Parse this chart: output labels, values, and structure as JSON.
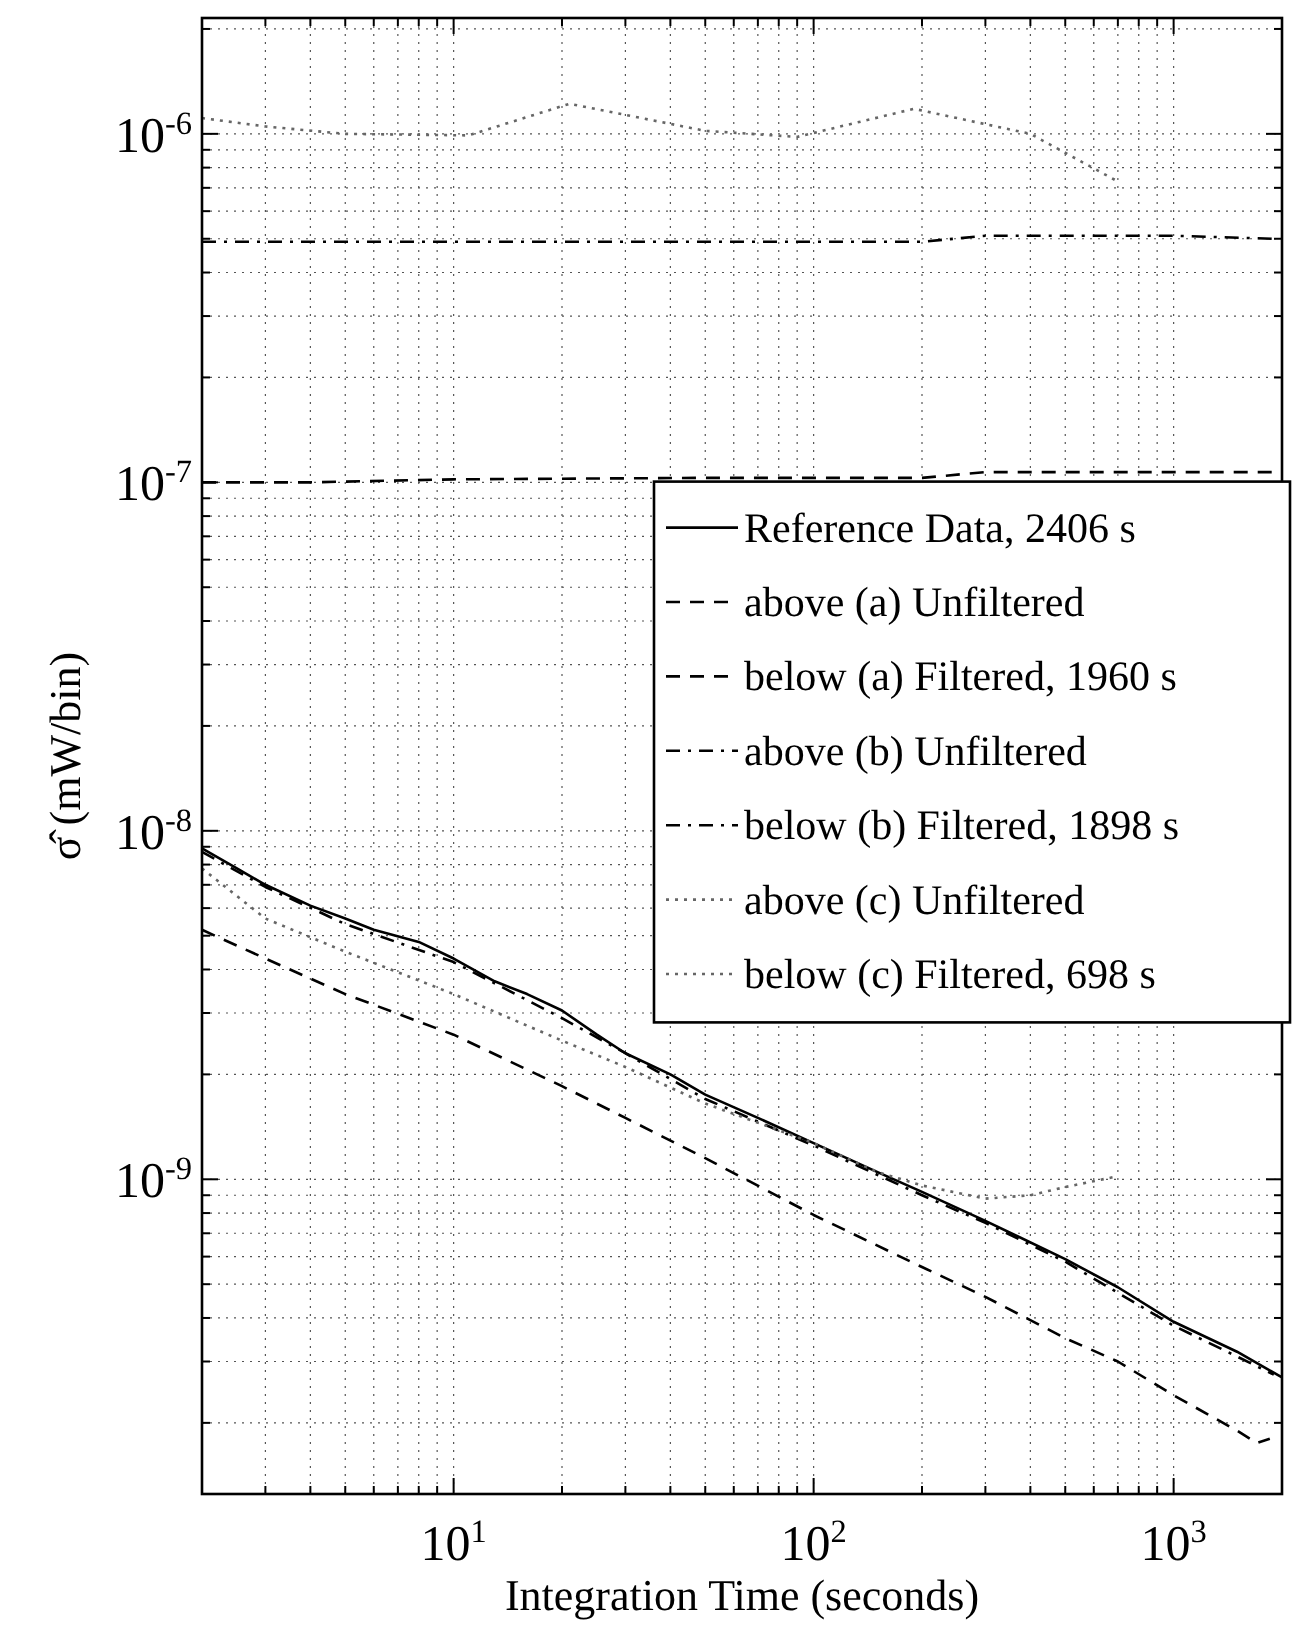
{
  "chart_data": {
    "type": "line",
    "xlabel": "Integration Time (seconds)",
    "ylabel": "σ̂ (mW/bin)",
    "log": "xy",
    "grid": true,
    "legend": "right",
    "xlim": [
      2,
      2000
    ],
    "ylim": [
      1.25e-10,
      2.15e-06
    ],
    "xticks": [
      {
        "value": 2,
        "label": null
      },
      {
        "value": 3,
        "label": null
      },
      {
        "value": 4,
        "label": null
      },
      {
        "value": 5,
        "label": null
      },
      {
        "value": 6,
        "label": null
      },
      {
        "value": 7,
        "label": null
      },
      {
        "value": 8,
        "label": null
      },
      {
        "value": 9,
        "label": null
      },
      {
        "value": 10,
        "label": "10$^{1}$"
      },
      {
        "value": 20,
        "label": null
      },
      {
        "value": 30,
        "label": null
      },
      {
        "value": 40,
        "label": null
      },
      {
        "value": 50,
        "label": null
      },
      {
        "value": 60,
        "label": null
      },
      {
        "value": 70,
        "label": null
      },
      {
        "value": 80,
        "label": null
      },
      {
        "value": 90,
        "label": null
      },
      {
        "value": 100,
        "label": "10$^{2}$"
      },
      {
        "value": 200,
        "label": null
      },
      {
        "value": 300,
        "label": null
      },
      {
        "value": 400,
        "label": null
      },
      {
        "value": 500,
        "label": null
      },
      {
        "value": 600,
        "label": null
      },
      {
        "value": 700,
        "label": null
      },
      {
        "value": 800,
        "label": null
      },
      {
        "value": 900,
        "label": null
      },
      {
        "value": 1000,
        "label": "10$^{3}$"
      },
      {
        "value": 2000,
        "label": null
      }
    ],
    "yticks": [
      {
        "value": 2e-10,
        "label": null
      },
      {
        "value": 3e-10,
        "label": null
      },
      {
        "value": 4e-10,
        "label": null
      },
      {
        "value": 5e-10,
        "label": null
      },
      {
        "value": 6e-10,
        "label": null
      },
      {
        "value": 7e-10,
        "label": null
      },
      {
        "value": 8e-10,
        "label": null
      },
      {
        "value": 9e-10,
        "label": null
      },
      {
        "value": 1e-09,
        "label": "10$^{-9}$"
      },
      {
        "value": 2e-09,
        "label": null
      },
      {
        "value": 3e-09,
        "label": null
      },
      {
        "value": 4e-09,
        "label": null
      },
      {
        "value": 5e-09,
        "label": null
      },
      {
        "value": 6e-09,
        "label": null
      },
      {
        "value": 7e-09,
        "label": null
      },
      {
        "value": 8e-09,
        "label": null
      },
      {
        "value": 9e-09,
        "label": null
      },
      {
        "value": 1e-08,
        "label": "10$^{-8}$"
      },
      {
        "value": 2e-08,
        "label": null
      },
      {
        "value": 3e-08,
        "label": null
      },
      {
        "value": 4e-08,
        "label": null
      },
      {
        "value": 5e-08,
        "label": null
      },
      {
        "value": 6e-08,
        "label": null
      },
      {
        "value": 7e-08,
        "label": null
      },
      {
        "value": 8e-08,
        "label": null
      },
      {
        "value": 9e-08,
        "label": null
      },
      {
        "value": 1e-07,
        "label": "10$^{-7}$"
      },
      {
        "value": 2e-07,
        "label": null
      },
      {
        "value": 3e-07,
        "label": null
      },
      {
        "value": 4e-07,
        "label": null
      },
      {
        "value": 5e-07,
        "label": null
      },
      {
        "value": 6e-07,
        "label": null
      },
      {
        "value": 7e-07,
        "label": null
      },
      {
        "value": 8e-07,
        "label": null
      },
      {
        "value": 9e-07,
        "label": null
      },
      {
        "value": 1e-06,
        "label": "10$^{-6}$"
      },
      {
        "value": 2e-06,
        "label": null
      }
    ],
    "series": [
      {
        "name": "Reference Data, 2406 s",
        "color": "#000000",
        "line_style": "solid",
        "x": [
          2,
          2.5,
          3,
          4,
          5,
          6,
          8,
          10,
          13,
          16,
          20,
          25,
          30,
          40,
          50,
          70,
          100,
          150,
          200,
          300,
          500,
          700,
          1000,
          1500,
          2000
        ],
        "values": [
          8.9e-09,
          7.8e-09,
          7e-09,
          6.1e-09,
          5.6e-09,
          5.2e-09,
          4.8e-09,
          4.3e-09,
          3.7e-09,
          3.4e-09,
          3.05e-09,
          2.6e-09,
          2.3e-09,
          2e-09,
          1.75e-09,
          1.5e-09,
          1.27e-09,
          1.05e-09,
          9.2e-10,
          7.6e-10,
          5.9e-10,
          4.9e-10,
          3.9e-10,
          3.2e-10,
          2.7e-10
        ]
      },
      {
        "name": "above (a) Unfiltered",
        "color": "#000000",
        "line_style": "dashed",
        "x": [
          2,
          4,
          10,
          50,
          200,
          300,
          1000,
          1900
        ],
        "values": [
          1e-07,
          1e-07,
          1.02e-07,
          1.03e-07,
          1.03e-07,
          1.07e-07,
          1.07e-07,
          1.07e-07
        ]
      },
      {
        "name": "below (a) Filtered, 1960 s",
        "color": "#000000",
        "line_style": "dashed",
        "x": [
          2,
          3,
          5,
          10,
          20,
          30,
          50,
          100,
          200,
          300,
          500,
          700,
          1000,
          1500,
          1700,
          1850
        ],
        "values": [
          5.2e-09,
          4.3e-09,
          3.4e-09,
          2.6e-09,
          1.85e-09,
          1.5e-09,
          1.15e-09,
          7.9e-10,
          5.6e-10,
          4.6e-10,
          3.5e-10,
          3e-10,
          2.4e-10,
          1.9e-10,
          1.75e-10,
          1.8e-10
        ]
      },
      {
        "name": "above (b) Unfiltered",
        "color": "#000000",
        "line_style": "dashdot",
        "x": [
          2,
          10,
          50,
          200,
          300,
          1000,
          1900
        ],
        "values": [
          4.9e-07,
          4.9e-07,
          4.9e-07,
          4.9e-07,
          5.1e-07,
          5.1e-07,
          5e-07
        ]
      },
      {
        "name": "below (b) Filtered, 1898 s",
        "color": "#000000",
        "line_style": "dashdot",
        "x": [
          2,
          3,
          5,
          10,
          20,
          30,
          50,
          100,
          200,
          300,
          500,
          1000,
          1500,
          1898
        ],
        "values": [
          8.7e-09,
          6.9e-09,
          5.4e-09,
          4.2e-09,
          2.9e-09,
          2.3e-09,
          1.7e-09,
          1.25e-09,
          9e-10,
          7.5e-10,
          5.8e-10,
          3.8e-10,
          3.1e-10,
          2.75e-10
        ]
      },
      {
        "name": "above (c) Unfiltered",
        "color": "#666666",
        "line_style": "dotted",
        "x": [
          2,
          3,
          5,
          11,
          21,
          50,
          90,
          190,
          400,
          700
        ],
        "values": [
          1.11e-06,
          1.05e-06,
          1e-06,
          9.9e-07,
          1.22e-06,
          1.02e-06,
          9.8e-07,
          1.18e-06,
          1e-06,
          7.3e-07
        ]
      },
      {
        "name": "below (c) Filtered, 698 s",
        "color": "#666666",
        "line_style": "dotted",
        "x": [
          2,
          3,
          5,
          10,
          20,
          30,
          50,
          100,
          150,
          200,
          300,
          400,
          500,
          698
        ],
        "values": [
          7.8e-09,
          5.6e-09,
          4.5e-09,
          3.4e-09,
          2.5e-09,
          2.1e-09,
          1.65e-09,
          1.27e-09,
          1.05e-09,
          9.6e-10,
          8.8e-10,
          9e-10,
          9.5e-10,
          1.02e-09
        ]
      }
    ]
  }
}
